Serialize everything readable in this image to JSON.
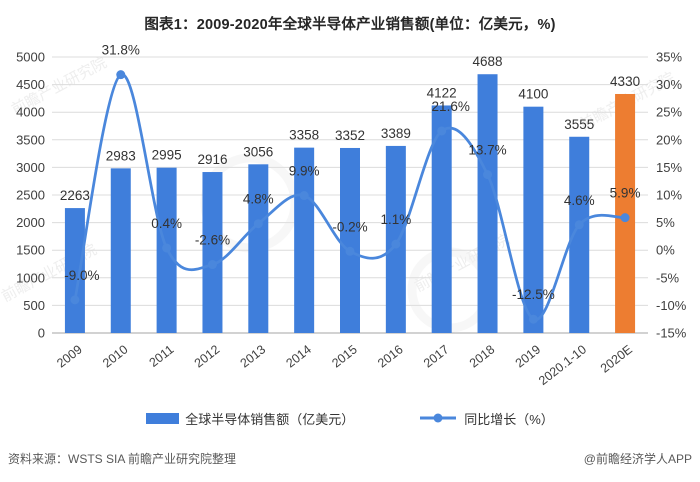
{
  "title": "图表1：2009-2020年全球半导体产业销售额(单位：亿美元，%)",
  "chart_data": {
    "type": "bar+line",
    "categories": [
      "2009",
      "2010",
      "2011",
      "2012",
      "2013",
      "2014",
      "2015",
      "2016",
      "2017",
      "2018",
      "2019",
      "2020.1-10",
      "2020E"
    ],
    "series": [
      {
        "name": "全球半导体销售额（亿美元）",
        "type": "bar",
        "axis": "left",
        "values": [
          2263,
          2983,
          2995,
          2916,
          3056,
          3358,
          3352,
          3389,
          4122,
          4688,
          4100,
          3555,
          4330
        ],
        "labels": [
          "2263",
          "2983",
          "2995",
          "2916",
          "3056",
          "3358",
          "3352",
          "3389",
          "4122",
          "4688",
          "4100",
          "3555",
          "4330"
        ],
        "color": "#3F7EDB",
        "highlight_index": 12,
        "highlight_color": "#ED7D31"
      },
      {
        "name": "同比增长（%）",
        "type": "line",
        "axis": "right",
        "values": [
          -9.0,
          31.8,
          0.4,
          -2.6,
          4.8,
          9.9,
          -0.2,
          1.1,
          21.6,
          13.7,
          -12.5,
          4.6,
          5.9
        ],
        "labels": [
          "-9.0%",
          "31.8%",
          "0.4%",
          "-2.6%",
          "4.8%",
          "9.9%",
          "-0.2%",
          "1.1%",
          "21.6%",
          "13.7%",
          "-12.5%",
          "4.6%",
          "5.9%"
        ],
        "color": "#4A87DC"
      }
    ],
    "left_axis": {
      "min": 0,
      "max": 5000,
      "step": 500,
      "tick_labels": [
        "5000",
        "4500",
        "4000",
        "3500",
        "3000",
        "2500",
        "2000",
        "1500",
        "1000",
        "500",
        "0"
      ]
    },
    "right_axis": {
      "min": -15,
      "max": 35,
      "step": 5,
      "tick_labels": [
        "35%",
        "30%",
        "25%",
        "20%",
        "15%",
        "10%",
        "5%",
        "0%",
        "-5%",
        "-10%",
        "-15%"
      ]
    },
    "grid": true,
    "legend_position": "bottom"
  },
  "legend": {
    "items": [
      {
        "label": "全球半导体销售额（亿美元）",
        "type": "bar"
      },
      {
        "label": "同比增长（%）",
        "type": "line"
      }
    ]
  },
  "footer": {
    "source": "资料来源：WSTS SIA 前瞻产业研究院整理",
    "credit": "@前瞻经济学人APP"
  },
  "watermark": {
    "text": "前瞻产业研究院"
  }
}
